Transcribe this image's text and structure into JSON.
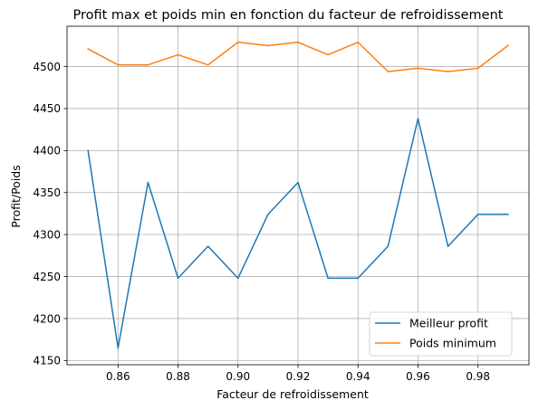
{
  "chart_data": {
    "type": "line",
    "title": "Profit max et poids min en fonction du facteur de refroidissement",
    "xlabel": "Facteur de refroidissement",
    "ylabel": "Profit/Poids",
    "x": [
      0.85,
      0.86,
      0.87,
      0.88,
      0.89,
      0.9,
      0.91,
      0.92,
      0.93,
      0.94,
      0.95,
      0.96,
      0.97,
      0.98,
      0.99
    ],
    "xlim": [
      0.843,
      0.997
    ],
    "ylim": [
      4145,
      4548
    ],
    "xticks": [
      0.86,
      0.88,
      0.9,
      0.92,
      0.94,
      0.96,
      0.98
    ],
    "xtick_labels": [
      "0.86",
      "0.88",
      "0.90",
      "0.92",
      "0.94",
      "0.96",
      "0.98"
    ],
    "yticks": [
      4150,
      4200,
      4250,
      4300,
      4350,
      4400,
      4450,
      4500
    ],
    "ytick_labels": [
      "4150",
      "4200",
      "4250",
      "4300",
      "4350",
      "4400",
      "4450",
      "4500"
    ],
    "grid": true,
    "legend_position": "lower-right",
    "series": [
      {
        "name": "Meilleur profit",
        "color": "#1f77b4",
        "values": [
          4400,
          4165,
          4362,
          4248,
          4286,
          4248,
          4324,
          4362,
          4248,
          4248,
          4286,
          4438,
          4286,
          4324,
          4324
        ]
      },
      {
        "name": "Poids minimum",
        "color": "#ff7f0e",
        "values": [
          4521,
          4502,
          4502,
          4514,
          4502,
          4529,
          4525,
          4529,
          4514,
          4529,
          4494,
          4498,
          4494,
          4498,
          4525
        ]
      }
    ]
  }
}
